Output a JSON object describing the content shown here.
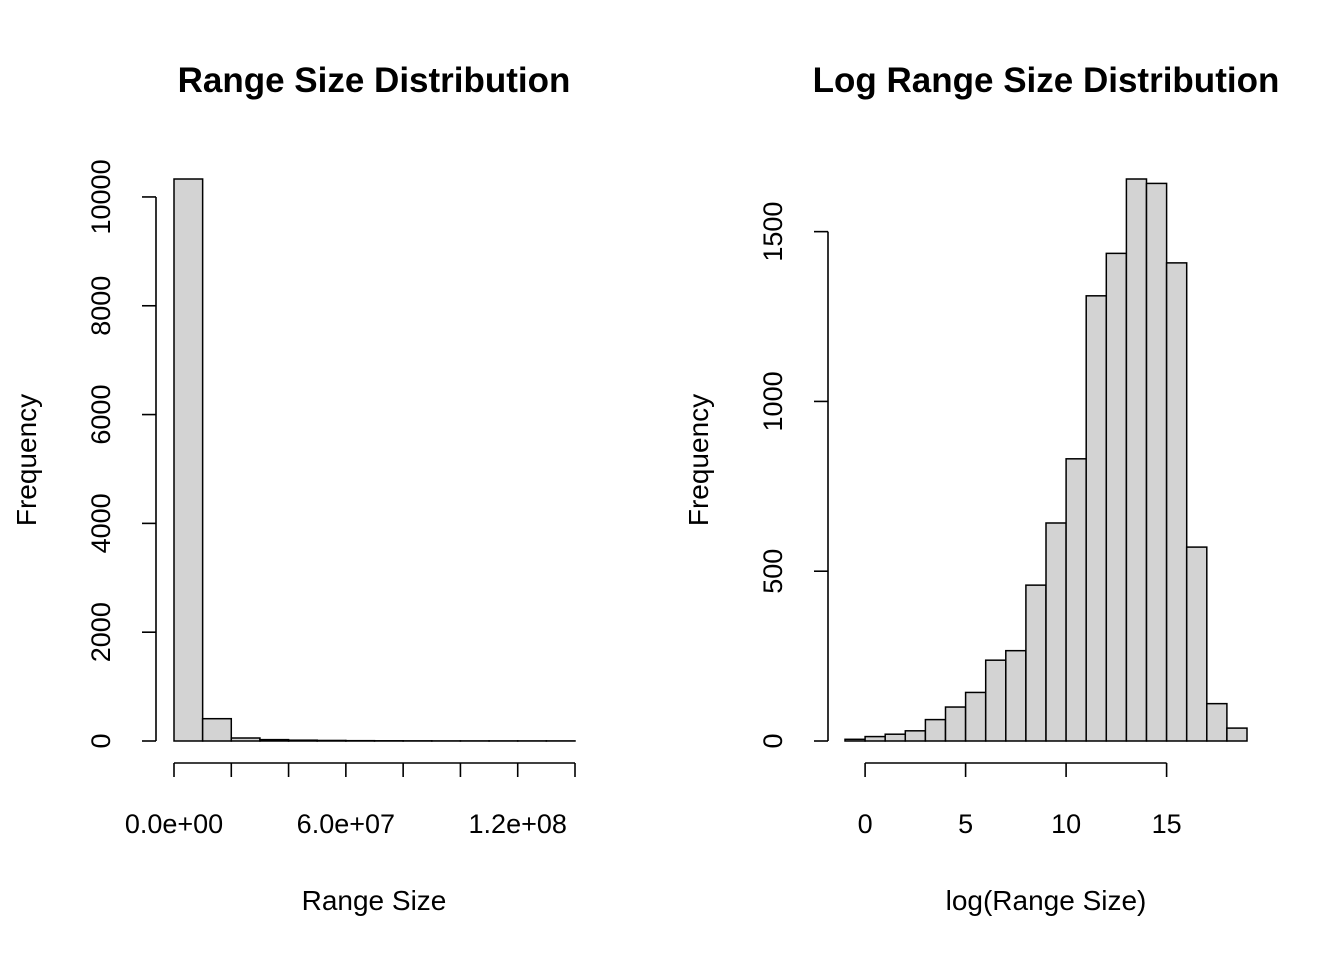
{
  "chart_data": [
    {
      "type": "histogram",
      "title": "Range Size Distribution",
      "xlabel": "Range Size",
      "ylabel": "Frequency",
      "bin_edges": [
        0,
        10000000.0,
        20000000.0,
        30000000.0,
        40000000.0,
        50000000.0,
        60000000.0,
        70000000.0,
        80000000.0,
        90000000.0,
        100000000.0,
        110000000.0,
        120000000.0,
        130000000.0,
        140000000.0
      ],
      "values": [
        10330,
        410,
        55,
        25,
        15,
        10,
        6,
        4,
        3,
        2,
        2,
        2,
        2,
        2
      ],
      "xlim": [
        0,
        140000000.0
      ],
      "ylim": [
        0,
        10330
      ],
      "x_ticks": [
        0,
        20000000.0,
        40000000.0,
        60000000.0,
        80000000.0,
        100000000.0,
        120000000.0,
        140000000.0
      ],
      "x_tick_labels": [
        "0.0e+00",
        "",
        "",
        "6.0e+07",
        "",
        "",
        "1.2e+08",
        ""
      ],
      "y_ticks": [
        0,
        2000,
        4000,
        6000,
        8000,
        10000
      ],
      "y_tick_labels": [
        "0",
        "2000",
        "4000",
        "6000",
        "8000",
        "10000"
      ]
    },
    {
      "type": "histogram",
      "title": "Log Range Size Distribution",
      "xlabel": "log(Range Size)",
      "ylabel": "Frequency",
      "bin_edges": [
        -1,
        0,
        1,
        2,
        3,
        4,
        5,
        6,
        7,
        8,
        9,
        10,
        11,
        12,
        13,
        14,
        15,
        16,
        17,
        18,
        19
      ],
      "values": [
        5,
        13,
        20,
        30,
        63,
        100,
        143,
        238,
        266,
        459,
        642,
        831,
        1311,
        1436,
        1655,
        1642,
        1408,
        571,
        110,
        38
      ],
      "xlim": [
        -1,
        19
      ],
      "ylim": [
        0,
        1655
      ],
      "x_ticks": [
        0,
        5,
        10,
        15
      ],
      "x_tick_labels": [
        "0",
        "5",
        "10",
        "15"
      ],
      "y_ticks": [
        0,
        500,
        1000,
        1500
      ],
      "y_tick_labels": [
        "0",
        "500",
        "1000",
        "1500"
      ]
    }
  ]
}
